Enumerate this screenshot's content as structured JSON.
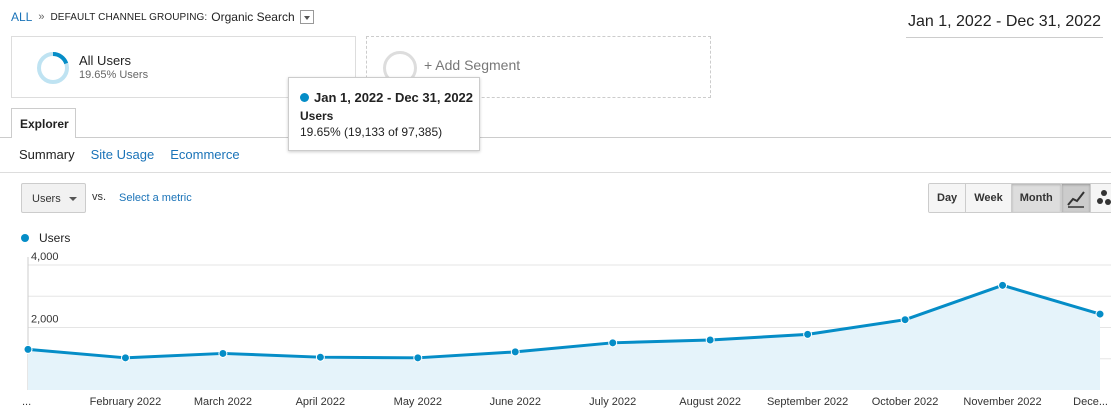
{
  "breadcrumb": {
    "all": "ALL",
    "separator": "»",
    "dimension_label": "DEFAULT CHANNEL GROUPING:",
    "dimension_value": "Organic Search"
  },
  "date_range": "Jan 1, 2022 - Dec 31, 2022",
  "segment": {
    "name": "All Users",
    "subtitle": "19.65% Users",
    "fraction": 0.1965
  },
  "add_segment_label": "+ Add Segment",
  "tooltip": {
    "date_range": "Jan 1, 2022 - Dec 31, 2022",
    "metric": "Users",
    "value": "19.65% (19,133 of 97,385)"
  },
  "tabs": {
    "explorer": "Explorer"
  },
  "subtabs": [
    "Summary",
    "Site Usage",
    "Ecommerce"
  ],
  "metric_select": {
    "value": "Users",
    "vs": "vs.",
    "select_metric": "Select a metric"
  },
  "granularity": [
    "Day",
    "Week",
    "Month"
  ],
  "granularity_active": "Month",
  "view_icons": [
    "line-chart-icon",
    "motion-chart-icon"
  ],
  "colors": {
    "accent": "#058dc7",
    "link": "#1a73b8",
    "area_fill": "#e5f3fa"
  },
  "chart_data": {
    "type": "area",
    "series": [
      {
        "name": "Users",
        "values": [
          1300,
          1030,
          1170,
          1050,
          1030,
          1220,
          1510,
          1600,
          1780,
          2250,
          3350,
          2430
        ]
      }
    ],
    "categories": [
      "...",
      "February 2022",
      "March 2022",
      "April 2022",
      "May 2022",
      "June 2022",
      "July 2022",
      "August 2022",
      "September 2022",
      "October 2022",
      "November 2022",
      "Dece..."
    ],
    "yticks": [
      "4,000",
      "2,000"
    ],
    "ytick_values": [
      4000,
      2000
    ],
    "ylim": [
      0,
      4000
    ],
    "grid": true,
    "legend": "top-left"
  }
}
